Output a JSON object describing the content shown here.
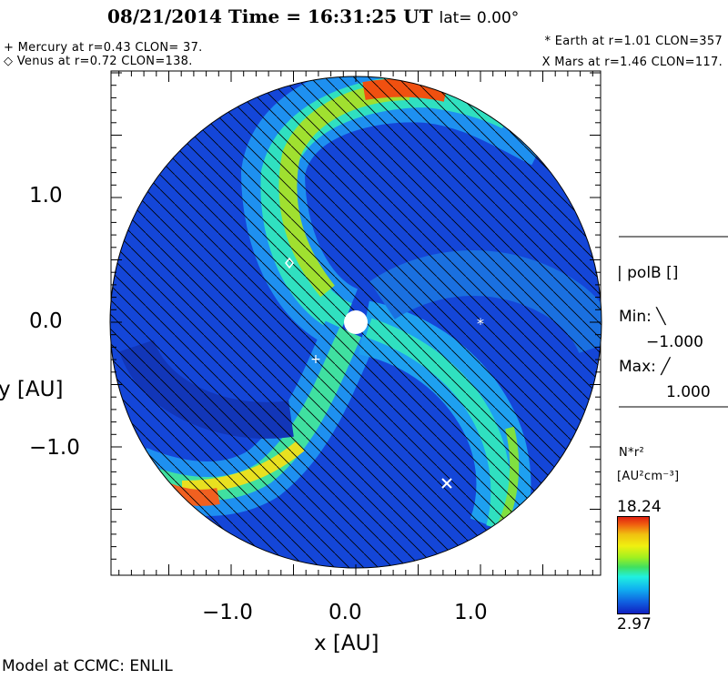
{
  "header": {
    "title": "08/21/2014 Time = 16:31:25 UT",
    "lat": "lat= 0.00°",
    "mercury": "+ Mercury at r=0.43 CLON= 37.",
    "venus": "◇ Venus at r=0.72 CLON=138.",
    "earth": "* Earth at  r=1.01 CLON=357",
    "mars": "X Mars at r=1.46 CLON=117."
  },
  "legend": {
    "polb": "| polB []",
    "min_label": "Min: ╲",
    "min_value": "−1.000",
    "max_label": "Max: ╱",
    "max_value": "1.000",
    "var": "N*r²",
    "units": "[AU²cm⁻³]",
    "cmax": "18.24",
    "cmin": "2.97"
  },
  "footer": "Model at CCMC: ENLIL",
  "chart_data": {
    "type": "heatmap",
    "title": "08/21/2014 Time = 16:31:25 UT lat= 0.00°",
    "xlabel": "x [AU]",
    "ylabel": "y [AU]",
    "xlim": [
      -1.97,
      1.97
    ],
    "ylim": [
      -1.97,
      2.02
    ],
    "xticks": [
      "−1.0",
      "0.0",
      "1.0"
    ],
    "yticks": [
      "1.0",
      "0.0",
      "−1.0"
    ],
    "variable": "N*r²",
    "units": "[AU²cm⁻³]",
    "color_range": [
      2.97,
      18.24
    ],
    "hatch_variable": "polB",
    "hatch_range": [
      -1.0,
      1.0
    ],
    "planets": [
      {
        "name": "Mercury",
        "marker": "+",
        "r": 0.43,
        "clon": 37
      },
      {
        "name": "Venus",
        "marker": "◇",
        "r": 0.72,
        "clon": 138
      },
      {
        "name": "Earth",
        "marker": "*",
        "r": 1.01,
        "clon": 357
      },
      {
        "name": "Mars",
        "marker": "X",
        "r": 1.46,
        "clon": 117
      }
    ]
  }
}
